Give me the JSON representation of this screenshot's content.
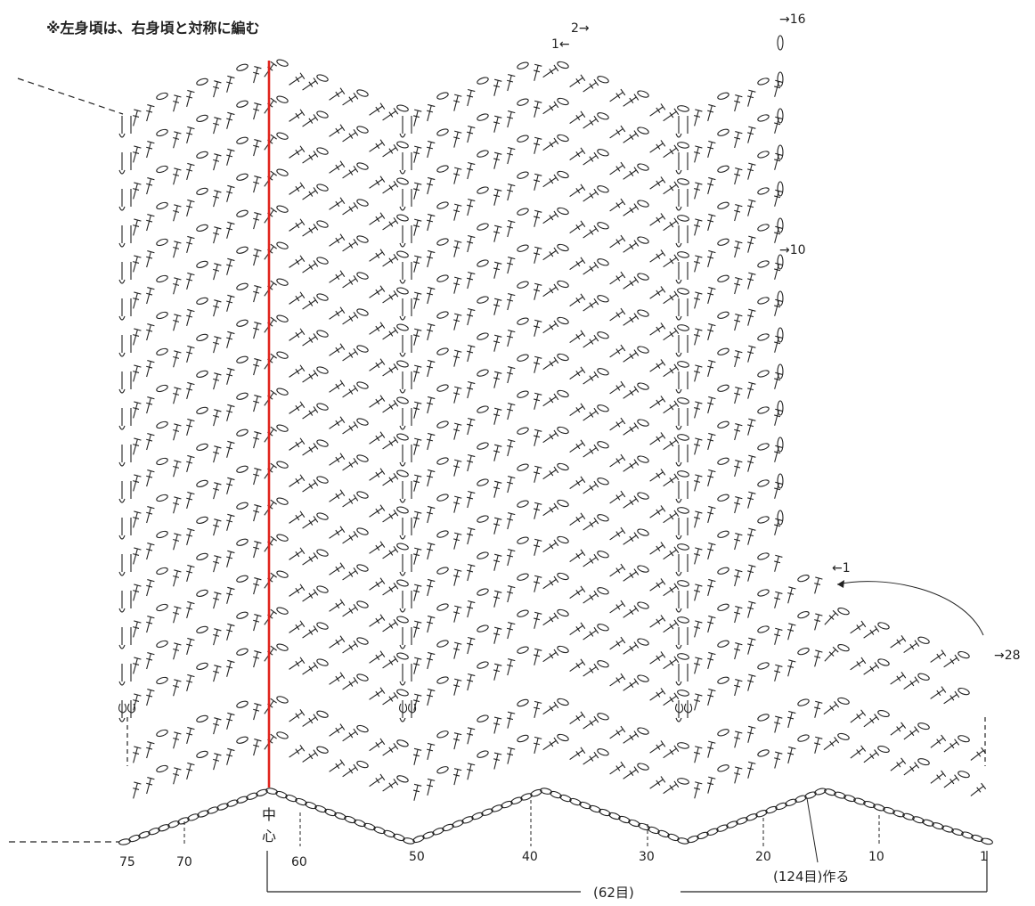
{
  "note": "※左身頃は、右身頃と対称に編む",
  "center_label_top": "中",
  "center_label_bottom": "心",
  "row_markers": {
    "upper_2": "2→",
    "upper_1": "1←",
    "upper_16": "→16",
    "upper_10": "→10",
    "lower_1": "←1",
    "lower_28": "→28"
  },
  "stitch_numbers": [
    "75",
    "70",
    "60",
    "50",
    "40",
    "30",
    "20",
    "10",
    "1"
  ],
  "chain_count": "(124目)作る",
  "half_count": "(62目)",
  "colors": {
    "ink": "#222222",
    "center_line": "#e0231c"
  }
}
